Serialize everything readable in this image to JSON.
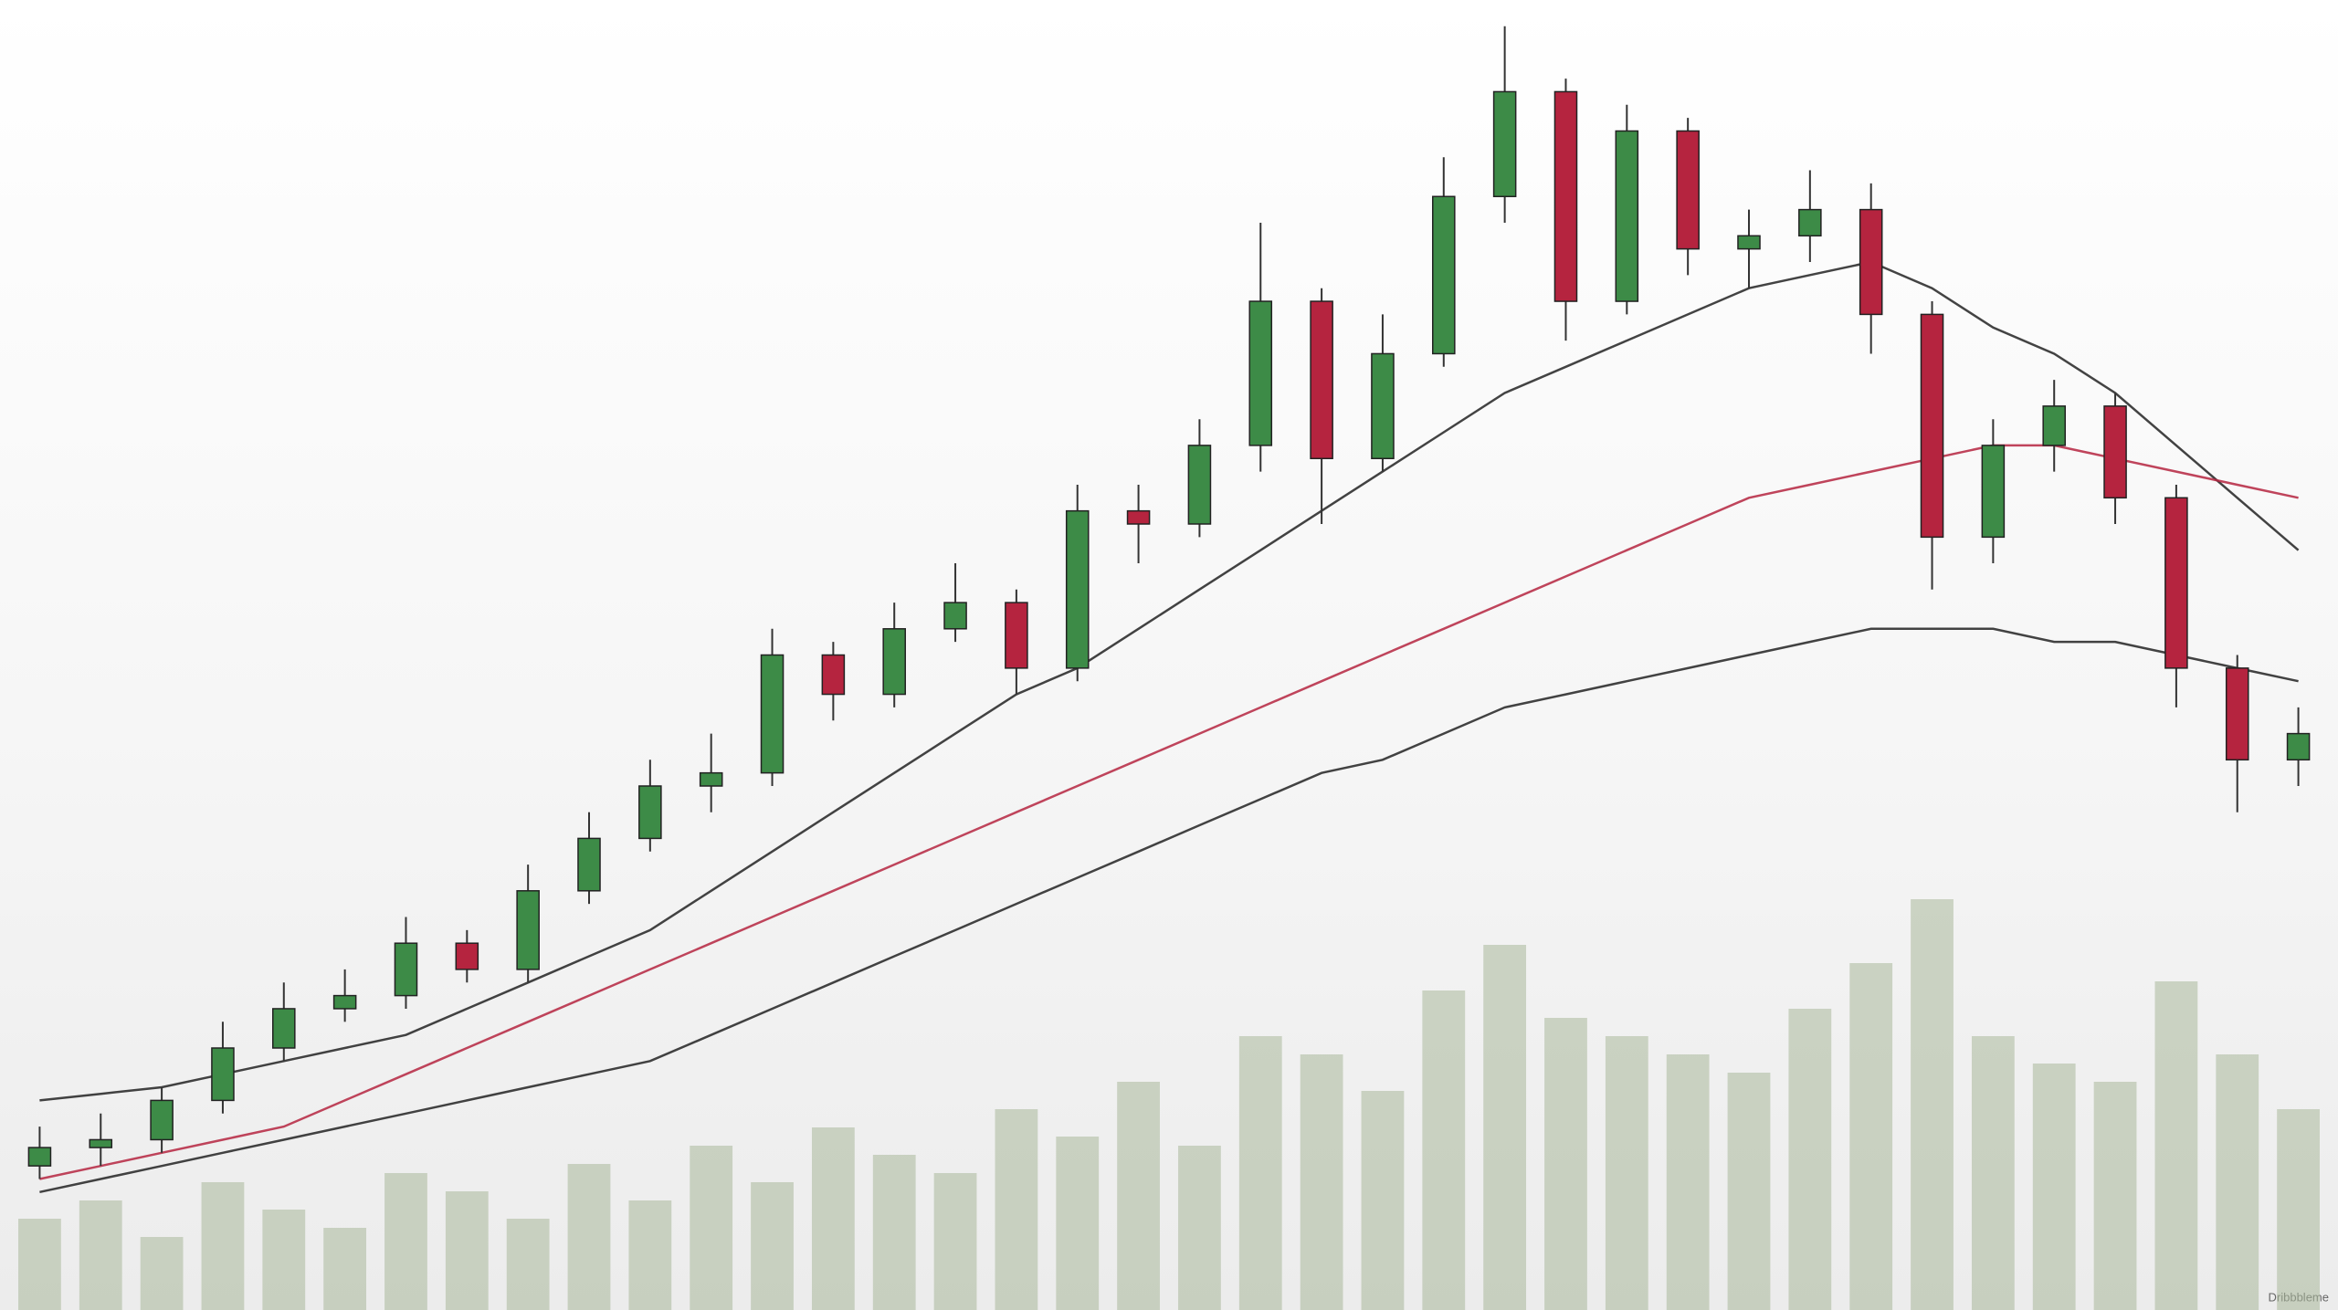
{
  "chart_data": {
    "type": "candlestick",
    "categories": [
      null,
      null,
      null,
      null,
      null,
      null,
      null,
      null,
      null,
      null,
      null,
      null,
      null,
      null,
      null,
      null,
      null,
      null,
      null,
      null,
      null,
      null,
      null,
      null,
      null,
      null,
      null,
      null,
      null,
      null,
      null,
      null,
      null,
      null,
      null,
      null,
      null,
      null
    ],
    "open": [
      11,
      12.4,
      13,
      16,
      20,
      23,
      24,
      28,
      26,
      32,
      36,
      40,
      41,
      50,
      47,
      52,
      54,
      49,
      61,
      60,
      66,
      77,
      65,
      73,
      85,
      93,
      77,
      90,
      81,
      82,
      84,
      76,
      59,
      66,
      69,
      62,
      49,
      42
    ],
    "high": [
      14,
      15,
      17,
      22,
      25,
      26,
      30,
      29,
      34,
      38,
      42,
      44,
      52,
      51,
      54,
      57,
      55,
      63,
      63,
      68,
      83,
      78,
      76,
      88,
      98,
      94,
      92,
      91,
      84,
      87,
      86,
      77,
      68,
      71,
      70,
      63,
      50,
      46
    ],
    "low": [
      10,
      11,
      12,
      15,
      19,
      22,
      23,
      25,
      25,
      31,
      35,
      38,
      40,
      45,
      46,
      51,
      47,
      48,
      57,
      59,
      64,
      60,
      64,
      72,
      83,
      74,
      76,
      79,
      78,
      80,
      73,
      55,
      57,
      64,
      60,
      46,
      38,
      40
    ],
    "close": [
      12.4,
      13,
      16,
      20,
      23,
      24,
      28,
      26,
      32,
      36,
      40,
      41,
      50,
      47,
      52,
      54,
      49,
      61,
      60,
      66,
      77,
      65,
      73,
      85,
      93,
      77,
      90,
      81,
      82,
      84,
      76,
      59,
      66,
      69,
      62,
      49,
      42,
      44
    ],
    "up_color": "#3d8b47",
    "down_color": "#b5243f",
    "series": [
      {
        "color": "#222222",
        "values": [
          16,
          16.5,
          17,
          18,
          19,
          20,
          21,
          23,
          25,
          27,
          29,
          32,
          35,
          38,
          41,
          44,
          47,
          49,
          52,
          55,
          58,
          61,
          64,
          67,
          70,
          72,
          74,
          76,
          78,
          79,
          80,
          78,
          75,
          73,
          70,
          66,
          62,
          58
        ]
      },
      {
        "color": "#b5243f",
        "values": [
          10,
          11,
          12,
          13,
          14,
          16,
          18,
          20,
          22,
          24,
          26,
          28,
          30,
          32,
          34,
          36,
          38,
          40,
          42,
          44,
          46,
          48,
          50,
          52,
          54,
          56,
          58,
          60,
          62,
          63,
          64,
          65,
          66,
          66,
          65,
          64,
          63,
          62
        ]
      },
      {
        "color": "#222222",
        "values": [
          9,
          10,
          11,
          12,
          13,
          14,
          15,
          16,
          17,
          18,
          19,
          21,
          23,
          25,
          27,
          29,
          31,
          33,
          35,
          37,
          39,
          41,
          42,
          44,
          46,
          47,
          48,
          49,
          50,
          51,
          52,
          52,
          52,
          51,
          51,
          50,
          49,
          48
        ]
      }
    ],
    "volume": [
      10,
      12,
      8,
      14,
      11,
      9,
      15,
      13,
      10,
      16,
      12,
      18,
      14,
      20,
      17,
      15,
      22,
      19,
      25,
      18,
      30,
      28,
      24,
      35,
      40,
      32,
      30,
      28,
      26,
      33,
      38,
      45,
      30,
      27,
      25,
      36,
      28,
      22
    ],
    "volume_color": "#aab89a",
    "ylim": [
      0,
      100
    ],
    "vlim": [
      0,
      50
    ],
    "watermark": "Dribbbleme"
  }
}
